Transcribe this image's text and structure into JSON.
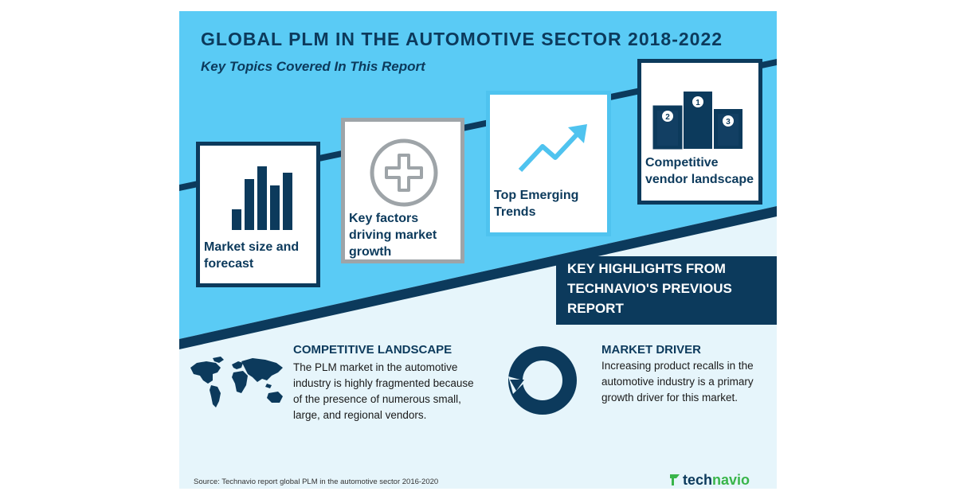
{
  "header": {
    "title": "GLOBAL PLM IN THE AUTOMOTIVE SECTOR 2018-2022",
    "subtitle": "Key Topics Covered In This Report"
  },
  "topics": [
    {
      "label": "Market size and forecast",
      "icon": "bar-chart-icon"
    },
    {
      "label": "Key factors driving market growth",
      "icon": "plus-circle-icon"
    },
    {
      "label": "Top Emerging Trends",
      "icon": "trend-arrow-icon"
    },
    {
      "label": "Competitive vendor landscape",
      "icon": "podium-icon"
    }
  ],
  "podium_numbers": [
    "1",
    "2",
    "3"
  ],
  "highlight": {
    "text": "KEY HIGHLIGHTS FROM TECHNAVIO'S PREVIOUS REPORT"
  },
  "sections": {
    "competitive": {
      "title": "COMPETITIVE LANDSCAPE",
      "body": "The PLM market in the automotive industry is highly fragmented because of the presence of numerous small, large, and regional vendors.",
      "icon": "world-map-icon"
    },
    "driver": {
      "title": "MARKET DRIVER",
      "body": "Increasing product recalls in the automotive industry is a primary growth driver for this market.",
      "icon": "circular-arrow-icon"
    }
  },
  "footer": {
    "source": "Source: Technavio report global PLM in the automotive sector 2016-2020",
    "brand_prefix": "tech",
    "brand_suffix": "navio"
  },
  "colors": {
    "navy": "#0c3a5c",
    "sky_blue": "#5acbf5",
    "light_background": "#e6f5fb",
    "brand_green": "#39b54a"
  }
}
